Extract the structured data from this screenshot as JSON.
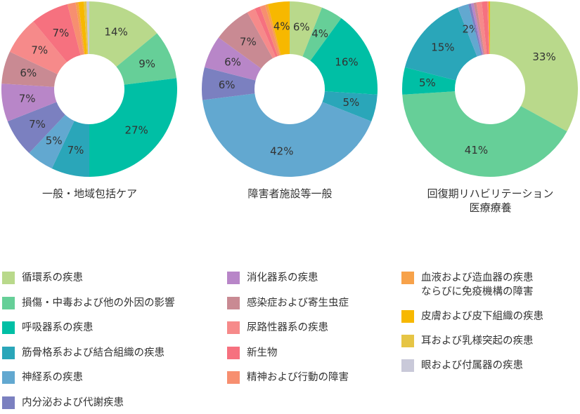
{
  "chart_data": [
    {
      "type": "pie",
      "title": "一般・地域包括ケア",
      "values": [
        14,
        9,
        27,
        7,
        5,
        7,
        7,
        6,
        7,
        7,
        1.5,
        0.5,
        1,
        0.5,
        0.5
      ],
      "value_labels": [
        "14%",
        "9%",
        "27%",
        "7%",
        "5%",
        "7%",
        "7%",
        "6%",
        "7%",
        "7%",
        null,
        null,
        null,
        null,
        null
      ]
    },
    {
      "type": "pie",
      "title": "障害者施設等一般",
      "values": [
        6,
        4,
        16,
        5,
        42,
        6,
        6,
        7,
        1.5,
        1,
        1,
        0.5,
        4,
        0,
        0
      ],
      "value_labels": [
        "6%",
        "4%",
        "16%",
        "5%",
        "42%",
        "6%",
        "6%",
        "7%",
        null,
        null,
        null,
        null,
        "4%",
        null,
        null
      ]
    },
    {
      "type": "pie",
      "title": "回復期リハビリテーション\n医療療養",
      "values": [
        33,
        41,
        5,
        15,
        2,
        0.5,
        0.5,
        0.5,
        1,
        1,
        0.3,
        0,
        0.2,
        0,
        0
      ],
      "value_labels": [
        "33%",
        "41%",
        "5%",
        "15%",
        "2%",
        null,
        null,
        null,
        null,
        null,
        null,
        null,
        null,
        null,
        null
      ]
    }
  ],
  "legend": {
    "categories": [
      "循環系の疾患",
      "損傷・中毒および他の外因の影響",
      "呼吸器系の疾患",
      "筋骨格系および結合組織の疾患",
      "神経系の疾患",
      "内分泌および代謝疾患",
      "消化器系の疾患",
      "感染症および寄生虫症",
      "尿路性器系の疾患",
      "新生物",
      "精神および行動の障害",
      "血液および造血器の疾患\nならびに免疫機構の障害",
      "皮膚および皮下組織の疾患",
      "耳および乳様突起の疾患",
      "眼および付属器の疾患"
    ],
    "colors": [
      "#b9d98b",
      "#66cf98",
      "#00bfa5",
      "#2aa6b9",
      "#62a8d0",
      "#7b80c0",
      "#b886c8",
      "#c98a93",
      "#f68a8a",
      "#f6717f",
      "#f78f70",
      "#f7a24a",
      "#f7b800",
      "#e6c545",
      "#c9c9d9"
    ]
  }
}
